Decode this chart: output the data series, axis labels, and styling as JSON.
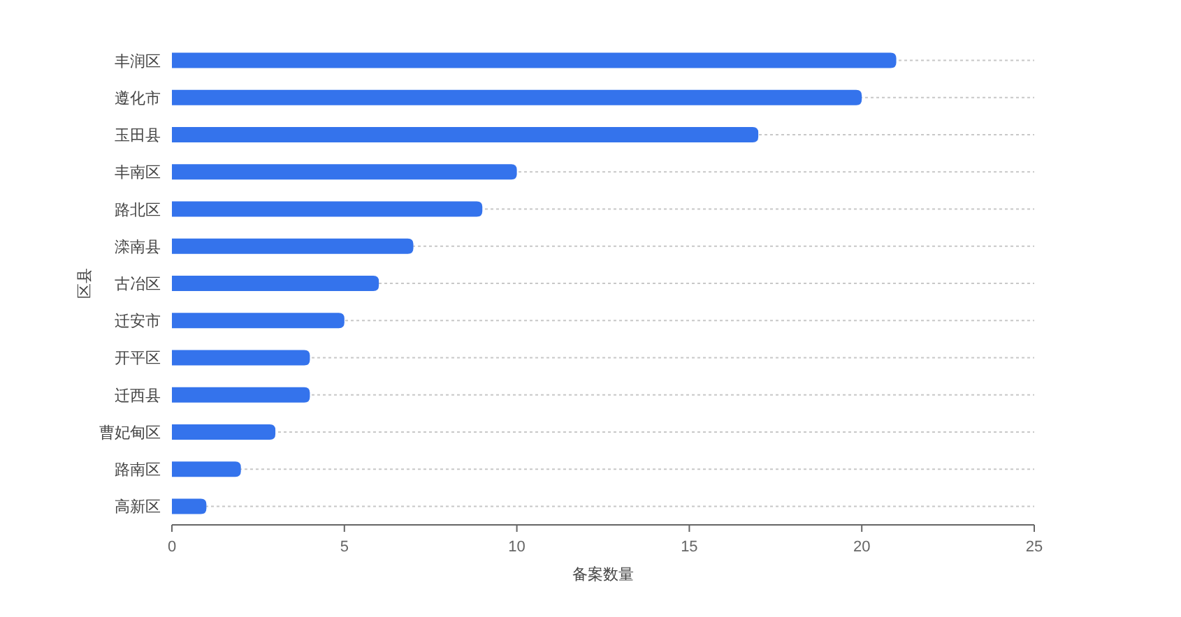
{
  "chart_data": {
    "type": "bar",
    "orientation": "horizontal",
    "xlabel": "备案数量",
    "ylabel": "区县",
    "categories": [
      "丰润区",
      "遵化市",
      "玉田县",
      "丰南区",
      "路北区",
      "滦南县",
      "古冶区",
      "迁安市",
      "开平区",
      "迁西县",
      "曹妃甸区",
      "路南区",
      "高新区"
    ],
    "values": [
      21,
      20,
      17,
      10,
      9,
      7,
      6,
      5,
      4,
      4,
      3,
      2,
      1
    ],
    "color": "#3473ec",
    "xlim": [
      0,
      25
    ],
    "xticks": [
      0,
      5,
      10,
      15,
      20,
      25
    ],
    "grid": "y"
  }
}
